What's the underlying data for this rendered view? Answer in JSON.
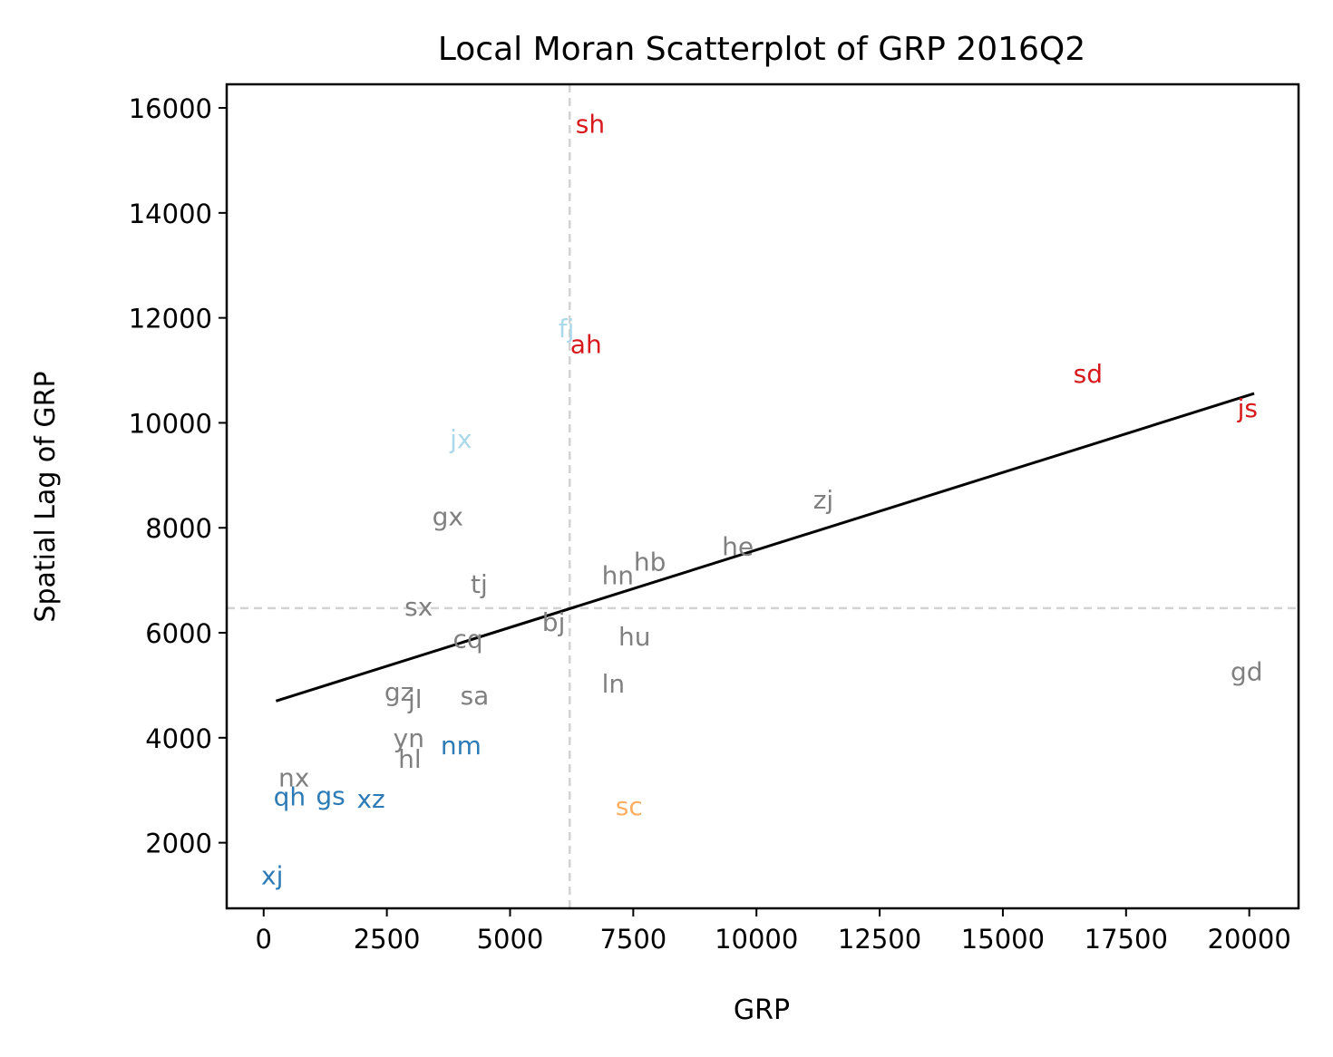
{
  "chart_data": {
    "type": "scatter",
    "title": "Local Moran Scatterplot of GRP 2016Q2",
    "xlabel": "GRP",
    "ylabel": "Spatial Lag of GRP",
    "xlim": [
      -750,
      21000
    ],
    "ylim": [
      750,
      16450
    ],
    "x_ticks": [
      0,
      2500,
      5000,
      7500,
      10000,
      12500,
      15000,
      17500,
      20000
    ],
    "y_ticks": [
      2000,
      4000,
      6000,
      8000,
      10000,
      12000,
      14000,
      16000
    ],
    "x_tick_labels": [
      "0",
      "2500",
      "5000",
      "7500",
      "10000",
      "12500",
      "15000",
      "17500",
      "20000"
    ],
    "y_tick_labels": [
      "2000",
      "4000",
      "6000",
      "8000",
      "10000",
      "12000",
      "14000",
      "16000"
    ],
    "grid": false,
    "legend": "none",
    "mean_x": 6210,
    "mean_y": 6470,
    "fit_line": {
      "x": [
        250,
        20100
      ],
      "y": [
        4700,
        10560
      ]
    },
    "colors": {
      "HH": "#d7191c",
      "LH": "#abd9e9",
      "LL": "#2c7bb6",
      "HL": "#fdae61",
      "ns": "#808080",
      "fit": "#000000",
      "mean_line": "#d3d3d3"
    },
    "points": [
      {
        "label": "sh",
        "x": 6330,
        "y": 15700,
        "q": "HH"
      },
      {
        "label": "fj",
        "x": 5980,
        "y": 11800,
        "q": "LH"
      },
      {
        "label": "ah",
        "x": 6220,
        "y": 11500,
        "q": "HH"
      },
      {
        "label": "sd",
        "x": 16430,
        "y": 10940,
        "q": "HH"
      },
      {
        "label": "js",
        "x": 19760,
        "y": 10280,
        "q": "HH"
      },
      {
        "label": "jx",
        "x": 3780,
        "y": 9700,
        "q": "LH"
      },
      {
        "label": "zj",
        "x": 11150,
        "y": 8540,
        "q": "ns"
      },
      {
        "label": "gx",
        "x": 3420,
        "y": 8220,
        "q": "ns"
      },
      {
        "label": "he",
        "x": 9300,
        "y": 7650,
        "q": "ns"
      },
      {
        "label": "hb",
        "x": 7510,
        "y": 7360,
        "q": "ns"
      },
      {
        "label": "hn",
        "x": 6860,
        "y": 7100,
        "q": "ns"
      },
      {
        "label": "tj",
        "x": 4200,
        "y": 6930,
        "q": "ns"
      },
      {
        "label": "sx",
        "x": 2860,
        "y": 6500,
        "q": "ns"
      },
      {
        "label": "bj",
        "x": 5650,
        "y": 6210,
        "q": "ns"
      },
      {
        "label": "hu",
        "x": 7200,
        "y": 5930,
        "q": "ns"
      },
      {
        "label": "cq",
        "x": 3840,
        "y": 5890,
        "q": "ns"
      },
      {
        "label": "gd",
        "x": 19620,
        "y": 5270,
        "q": "ns"
      },
      {
        "label": "ln",
        "x": 6860,
        "y": 5030,
        "q": "ns"
      },
      {
        "label": "gz",
        "x": 2450,
        "y": 4880,
        "q": "ns"
      },
      {
        "label": "sa",
        "x": 3990,
        "y": 4810,
        "q": "ns"
      },
      {
        "label": "jl",
        "x": 2930,
        "y": 4740,
        "q": "ns"
      },
      {
        "label": "yn",
        "x": 2630,
        "y": 4000,
        "q": "ns"
      },
      {
        "label": "nm",
        "x": 3590,
        "y": 3860,
        "q": "LL"
      },
      {
        "label": "hl",
        "x": 2730,
        "y": 3600,
        "q": "ns"
      },
      {
        "label": "nx",
        "x": 300,
        "y": 3250,
        "q": "ns"
      },
      {
        "label": "qh",
        "x": 200,
        "y": 2880,
        "q": "LL"
      },
      {
        "label": "gs",
        "x": 1060,
        "y": 2900,
        "q": "LL"
      },
      {
        "label": "xz",
        "x": 1890,
        "y": 2840,
        "q": "LL"
      },
      {
        "label": "sc",
        "x": 7140,
        "y": 2700,
        "q": "HL"
      },
      {
        "label": "xj",
        "x": -50,
        "y": 1380,
        "q": "LL"
      }
    ]
  }
}
